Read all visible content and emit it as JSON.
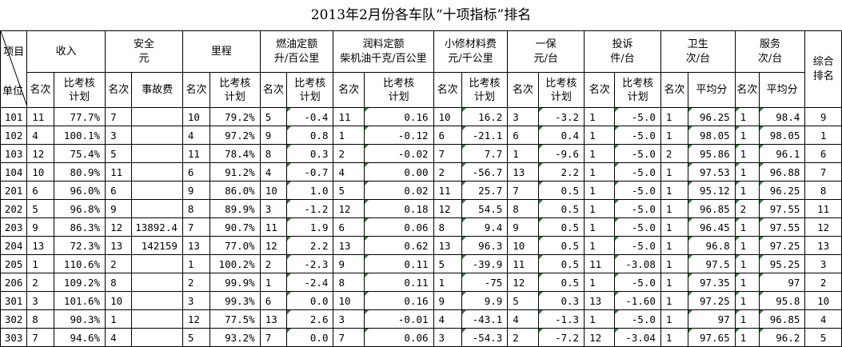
{
  "title": "2013年2月份各车队“十项指标”排名",
  "corner": {
    "top": "项目",
    "bottom": "单位"
  },
  "groups": [
    {
      "line1": "收入",
      "line2": ""
    },
    {
      "line1": "安全",
      "line2": "元"
    },
    {
      "line1": "里程",
      "line2": ""
    },
    {
      "line1": "燃油定额",
      "line2": "升/百公里"
    },
    {
      "line1": "润料定额",
      "line2": "柴机油千克/百公里"
    },
    {
      "line1": "小修材料费",
      "line2": "元/千公里"
    },
    {
      "line1": "一保",
      "line2": "元/台"
    },
    {
      "line1": "投诉",
      "line2": "件/台"
    },
    {
      "line1": "卫生",
      "line2": "次/台"
    },
    {
      "line1": "服务",
      "line2": "次/台"
    }
  ],
  "total_rank": {
    "line1": "综合",
    "line2": "排名"
  },
  "subheaders": {
    "rank": "名次",
    "plan": {
      "line1": "比考核",
      "line2": "计划"
    },
    "accident_fee": "事故费",
    "avg_score": "平均分"
  },
  "rows": [
    {
      "unit": "101",
      "v": [
        "11",
        "77.7%",
        "7",
        "",
        "10",
        "79.2%",
        "5",
        "-0.4",
        "11",
        "0.16",
        "10",
        "16.2",
        "3",
        "-3.2",
        "1",
        "-5.0",
        "1",
        "96.25",
        "1",
        "98.4"
      ],
      "total": "9"
    },
    {
      "unit": "102",
      "v": [
        "4",
        "100.1%",
        "3",
        "",
        "4",
        "97.2%",
        "9",
        "0.8",
        "1",
        "-0.12",
        "6",
        "-21.1",
        "6",
        "0.4",
        "1",
        "-5.0",
        "1",
        "98.05",
        "1",
        "98.05"
      ],
      "total": "1"
    },
    {
      "unit": "103",
      "v": [
        "12",
        "75.4%",
        "5",
        "",
        "11",
        "78.4%",
        "8",
        "0.3",
        "2",
        "-0.02",
        "7",
        "7.7",
        "1",
        "-9.6",
        "1",
        "-5.0",
        "2",
        "95.86",
        "1",
        "96.1"
      ],
      "total": "6"
    },
    {
      "unit": "104",
      "v": [
        "10",
        "80.9%",
        "11",
        "",
        "6",
        "91.2%",
        "4",
        "-0.7",
        "4",
        "0.00",
        "2",
        "-56.7",
        "13",
        "2.2",
        "1",
        "-5.0",
        "1",
        "97.53",
        "1",
        "96.88"
      ],
      "total": "7"
    },
    {
      "unit": "201",
      "v": [
        "6",
        "96.0%",
        "6",
        "",
        "9",
        "86.0%",
        "10",
        "1.0",
        "5",
        "0.02",
        "11",
        "25.7",
        "7",
        "0.5",
        "1",
        "-5.0",
        "1",
        "95.12",
        "1",
        "96.25"
      ],
      "total": "8"
    },
    {
      "unit": "202",
      "v": [
        "5",
        "96.8%",
        "9",
        "",
        "8",
        "89.9%",
        "3",
        "-1.2",
        "12",
        "0.18",
        "12",
        "54.5",
        "8",
        "0.5",
        "1",
        "-5.0",
        "1",
        "96.85",
        "2",
        "97.55"
      ],
      "total": "11"
    },
    {
      "unit": "203",
      "v": [
        "9",
        "86.3%",
        "12",
        "13892.4",
        "7",
        "90.7%",
        "11",
        "1.9",
        "6",
        "0.06",
        "8",
        "9.4",
        "9",
        "0.5",
        "1",
        "-5.0",
        "1",
        "96.45",
        "1",
        "97.55"
      ],
      "total": "12"
    },
    {
      "unit": "204",
      "v": [
        "13",
        "72.3%",
        "13",
        "142159",
        "13",
        "77.0%",
        "12",
        "2.2",
        "13",
        "0.62",
        "13",
        "96.3",
        "10",
        "0.5",
        "1",
        "-5.0",
        "1",
        "96.8",
        "1",
        "97.25"
      ],
      "total": "13"
    },
    {
      "unit": "205",
      "v": [
        "1",
        "110.6%",
        "2",
        "",
        "1",
        "100.2%",
        "2",
        "-2.3",
        "9",
        "0.11",
        "5",
        "-39.9",
        "11",
        "0.5",
        "11",
        "-3.08",
        "1",
        "97.5",
        "1",
        "95.25"
      ],
      "total": "3"
    },
    {
      "unit": "206",
      "v": [
        "2",
        "109.2%",
        "8",
        "",
        "2",
        "99.9%",
        "1",
        "-2.4",
        "8",
        "0.11",
        "1",
        "-75",
        "12",
        "0.5",
        "1",
        "-5.0",
        "1",
        "97.35",
        "1",
        "97"
      ],
      "total": "2"
    },
    {
      "unit": "301",
      "v": [
        "3",
        "101.6%",
        "10",
        "",
        "3",
        "99.3%",
        "6",
        "0.0",
        "10",
        "0.16",
        "9",
        "9.9",
        "5",
        "0.3",
        "13",
        "-1.60",
        "1",
        "97.25",
        "1",
        "95.8"
      ],
      "total": "10"
    },
    {
      "unit": "302",
      "v": [
        "8",
        "90.3%",
        "1",
        "",
        "12",
        "77.5%",
        "13",
        "2.6",
        "3",
        "-0.01",
        "4",
        "-43.1",
        "4",
        "-1.3",
        "1",
        "-5.0",
        "1",
        "97",
        "1",
        "96.85"
      ],
      "total": "4"
    },
    {
      "unit": "303",
      "v": [
        "7",
        "94.6%",
        "4",
        "",
        "5",
        "93.2%",
        "7",
        "0.0",
        "7",
        "0.06",
        "3",
        "-54.3",
        "2",
        "-7.2",
        "12",
        "-3.04",
        "1",
        "97.65",
        "1",
        "96.2"
      ],
      "total": "5"
    }
  ],
  "colors": {
    "grid": "#000000",
    "marker": "#2e7d32"
  }
}
